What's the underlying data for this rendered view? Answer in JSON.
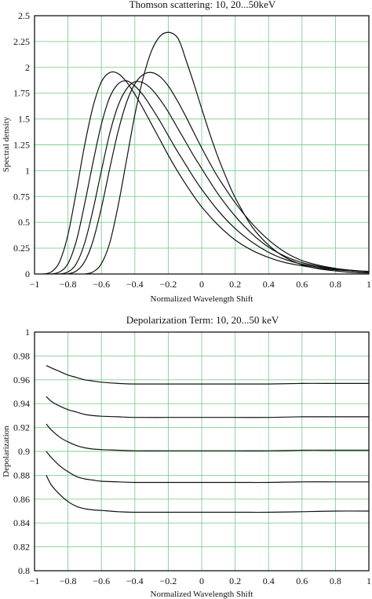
{
  "chart_data": [
    {
      "type": "line",
      "title": "Thomson scattering: 10, 20...50keV",
      "xlabel": "Normalized Wavelength Shift",
      "ylabel": "Spectral density",
      "xlim": [
        -1,
        1
      ],
      "ylim": [
        0,
        2.5
      ],
      "xticks": [
        -1,
        -0.8,
        -0.6,
        -0.4,
        -0.2,
        0,
        0.2,
        0.4,
        0.6,
        0.8,
        1
      ],
      "xtick_labels": [
        "−1",
        "−0.8",
        "−0.6",
        "−0.4",
        "−0.2",
        "0",
        "0.2",
        "0.4",
        "0.6",
        "0.8",
        "1"
      ],
      "yticks": [
        0,
        0.25,
        0.5,
        0.75,
        1,
        1.25,
        1.5,
        1.75,
        2,
        2.25,
        2.5
      ],
      "ytick_labels": [
        "0",
        "0.25",
        "0.5",
        "0.75",
        "1",
        "1.25",
        "1.5",
        "1.75",
        "2",
        "2.25",
        "2.5"
      ],
      "grid": true,
      "series": [
        {
          "x": [
            -0.95,
            -0.9,
            -0.85,
            -0.8,
            -0.75,
            -0.7,
            -0.65,
            -0.6,
            -0.55,
            -0.5,
            -0.45,
            -0.4,
            -0.35,
            -0.3,
            -0.25,
            -0.2,
            -0.15,
            -0.1,
            -0.05,
            0,
            0.1,
            0.2,
            0.3,
            0.4,
            0.5,
            0.6,
            0.7,
            0.8,
            0.9,
            1.0
          ],
          "y": [
            0.0,
            0.02,
            0.12,
            0.38,
            0.8,
            1.25,
            1.62,
            1.86,
            1.95,
            1.94,
            1.86,
            1.74,
            1.6,
            1.45,
            1.3,
            1.15,
            1.01,
            0.88,
            0.76,
            0.65,
            0.47,
            0.33,
            0.23,
            0.16,
            0.11,
            0.08,
            0.055,
            0.04,
            0.03,
            0.02
          ]
        },
        {
          "x": [
            -0.9,
            -0.85,
            -0.8,
            -0.75,
            -0.7,
            -0.65,
            -0.6,
            -0.55,
            -0.5,
            -0.45,
            -0.4,
            -0.35,
            -0.3,
            -0.25,
            -0.2,
            -0.15,
            -0.1,
            -0.05,
            0,
            0.1,
            0.2,
            0.3,
            0.4,
            0.5,
            0.6,
            0.7,
            0.8,
            0.9,
            1.0
          ],
          "y": [
            0.0,
            0.02,
            0.1,
            0.32,
            0.68,
            1.08,
            1.45,
            1.71,
            1.84,
            1.87,
            1.82,
            1.73,
            1.61,
            1.48,
            1.34,
            1.2,
            1.07,
            0.94,
            0.82,
            0.61,
            0.44,
            0.31,
            0.21,
            0.14,
            0.095,
            0.065,
            0.045,
            0.03,
            0.02
          ]
        },
        {
          "x": [
            -0.85,
            -0.8,
            -0.75,
            -0.7,
            -0.65,
            -0.6,
            -0.55,
            -0.5,
            -0.45,
            -0.4,
            -0.35,
            -0.3,
            -0.25,
            -0.2,
            -0.15,
            -0.1,
            -0.05,
            0,
            0.1,
            0.2,
            0.3,
            0.4,
            0.5,
            0.6,
            0.7,
            0.8,
            0.9,
            1.0
          ],
          "y": [
            0.0,
            0.02,
            0.1,
            0.3,
            0.62,
            1.0,
            1.36,
            1.63,
            1.79,
            1.86,
            1.85,
            1.79,
            1.69,
            1.57,
            1.43,
            1.29,
            1.15,
            1.02,
            0.77,
            0.56,
            0.39,
            0.26,
            0.17,
            0.11,
            0.075,
            0.05,
            0.035,
            0.025
          ]
        },
        {
          "x": [
            -0.8,
            -0.75,
            -0.7,
            -0.65,
            -0.6,
            -0.55,
            -0.5,
            -0.45,
            -0.4,
            -0.35,
            -0.3,
            -0.25,
            -0.2,
            -0.15,
            -0.1,
            -0.05,
            0,
            0.05,
            0.1,
            0.2,
            0.3,
            0.4,
            0.5,
            0.6,
            0.7,
            0.8,
            0.9,
            1.0
          ],
          "y": [
            0.0,
            0.03,
            0.12,
            0.32,
            0.64,
            1.02,
            1.38,
            1.66,
            1.84,
            1.93,
            1.95,
            1.91,
            1.82,
            1.69,
            1.54,
            1.38,
            1.22,
            1.07,
            0.93,
            0.69,
            0.49,
            0.33,
            0.21,
            0.13,
            0.085,
            0.055,
            0.035,
            0.02
          ]
        },
        {
          "x": [
            -0.7,
            -0.65,
            -0.6,
            -0.55,
            -0.5,
            -0.45,
            -0.4,
            -0.35,
            -0.3,
            -0.25,
            -0.2,
            -0.15,
            -0.12,
            -0.1,
            -0.05,
            0,
            0.05,
            0.1,
            0.15,
            0.2,
            0.3,
            0.4,
            0.5,
            0.6,
            0.7,
            0.8,
            0.9,
            1.0
          ],
          "y": [
            0.0,
            0.02,
            0.1,
            0.3,
            0.66,
            1.1,
            1.54,
            1.9,
            2.16,
            2.3,
            2.34,
            2.3,
            2.2,
            2.1,
            1.86,
            1.6,
            1.35,
            1.12,
            0.92,
            0.74,
            0.46,
            0.28,
            0.16,
            0.09,
            0.05,
            0.03,
            0.015,
            0.01
          ]
        }
      ]
    },
    {
      "type": "line",
      "title": "Depolarization Term: 10, 20...50 keV",
      "xlabel": "Normalized Wavelength Shift",
      "ylabel": "Depolarization",
      "xlim": [
        -1,
        1
      ],
      "ylim": [
        0.8,
        1
      ],
      "xticks": [
        -1,
        -0.8,
        -0.6,
        -0.4,
        -0.2,
        0,
        0.2,
        0.4,
        0.6,
        0.8,
        1
      ],
      "xtick_labels": [
        "−1",
        "−0.8",
        "−0.6",
        "−0.4",
        "−0.2",
        "0",
        "0.2",
        "0.4",
        "0.6",
        "0.8",
        "1"
      ],
      "yticks": [
        0.8,
        0.82,
        0.84,
        0.86,
        0.88,
        0.9,
        0.92,
        0.94,
        0.96,
        0.98,
        1
      ],
      "ytick_labels": [
        "0.8",
        "0.82",
        "0.84",
        "0.86",
        "0.88",
        "0.9",
        "0.92",
        "0.94",
        "0.96",
        "0.98",
        "1"
      ],
      "grid": true,
      "series": [
        {
          "x": [
            -0.93,
            -0.9,
            -0.85,
            -0.8,
            -0.75,
            -0.7,
            -0.65,
            -0.6,
            -0.5,
            -0.4,
            -0.2,
            0,
            0.2,
            0.4,
            0.6,
            0.8,
            1.0
          ],
          "y": [
            0.972,
            0.97,
            0.967,
            0.964,
            0.962,
            0.96,
            0.959,
            0.958,
            0.957,
            0.9565,
            0.9565,
            0.9565,
            0.9565,
            0.9565,
            0.957,
            0.957,
            0.957
          ]
        },
        {
          "x": [
            -0.93,
            -0.9,
            -0.85,
            -0.8,
            -0.75,
            -0.7,
            -0.65,
            -0.6,
            -0.5,
            -0.4,
            -0.2,
            0,
            0.2,
            0.4,
            0.6,
            0.8,
            1.0
          ],
          "y": [
            0.946,
            0.942,
            0.938,
            0.935,
            0.933,
            0.931,
            0.93,
            0.9295,
            0.929,
            0.9285,
            0.9285,
            0.9285,
            0.9285,
            0.9285,
            0.929,
            0.929,
            0.929
          ]
        },
        {
          "x": [
            -0.93,
            -0.9,
            -0.85,
            -0.8,
            -0.75,
            -0.7,
            -0.65,
            -0.6,
            -0.5,
            -0.4,
            -0.2,
            0,
            0.2,
            0.4,
            0.6,
            0.8,
            1.0
          ],
          "y": [
            0.923,
            0.918,
            0.912,
            0.908,
            0.905,
            0.903,
            0.902,
            0.9015,
            0.901,
            0.9005,
            0.9005,
            0.9005,
            0.9005,
            0.9005,
            0.901,
            0.901,
            0.901
          ]
        },
        {
          "x": [
            -0.93,
            -0.9,
            -0.85,
            -0.8,
            -0.75,
            -0.7,
            -0.65,
            -0.6,
            -0.5,
            -0.4,
            -0.2,
            0,
            0.2,
            0.4,
            0.6,
            0.8,
            1.0
          ],
          "y": [
            0.9,
            0.895,
            0.888,
            0.883,
            0.879,
            0.877,
            0.876,
            0.875,
            0.8745,
            0.874,
            0.874,
            0.874,
            0.874,
            0.874,
            0.8745,
            0.8745,
            0.8745
          ]
        },
        {
          "x": [
            -0.93,
            -0.9,
            -0.85,
            -0.8,
            -0.75,
            -0.7,
            -0.65,
            -0.6,
            -0.5,
            -0.4,
            -0.2,
            0,
            0.2,
            0.4,
            0.6,
            0.8,
            1.0
          ],
          "y": [
            0.88,
            0.872,
            0.864,
            0.858,
            0.854,
            0.852,
            0.851,
            0.8505,
            0.8495,
            0.849,
            0.849,
            0.849,
            0.849,
            0.849,
            0.8495,
            0.85,
            0.85
          ]
        }
      ]
    }
  ]
}
